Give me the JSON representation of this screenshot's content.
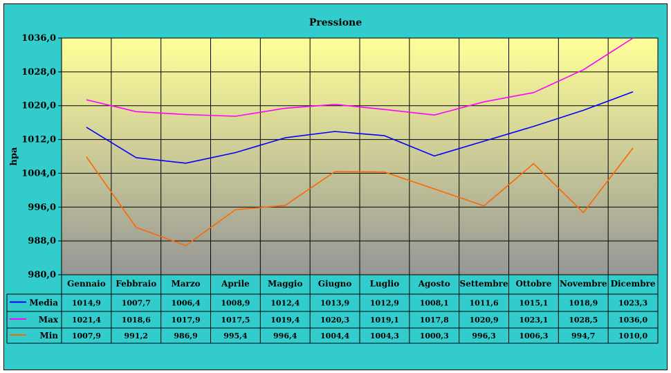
{
  "chart_data": {
    "type": "line",
    "title": "Pressione",
    "ylabel": "hpa",
    "ylim": [
      980,
      1036
    ],
    "yticks": [
      "980,0",
      "988,0",
      "996,0",
      "1004,0",
      "1012,0",
      "1020,0",
      "1028,0",
      "1036,0"
    ],
    "categories": [
      "Gennaio",
      "Febbraio",
      "Marzo",
      "Aprile",
      "Maggio",
      "Giugno",
      "Luglio",
      "Agosto",
      "Settembre",
      "Ottobre",
      "Novembre",
      "Dicembre"
    ],
    "series": [
      {
        "name": "Media",
        "color": "#0000ff",
        "values": [
          1014.9,
          1007.7,
          1006.4,
          1008.9,
          1012.4,
          1013.9,
          1012.9,
          1008.1,
          1011.6,
          1015.1,
          1018.9,
          1023.3
        ],
        "labels": [
          "1014,9",
          "1007,7",
          "1006,4",
          "1008,9",
          "1012,4",
          "1013,9",
          "1012,9",
          "1008,1",
          "1011,6",
          "1015,1",
          "1018,9",
          "1023,3"
        ]
      },
      {
        "name": "Max",
        "color": "#ff00ff",
        "values": [
          1021.4,
          1018.6,
          1017.9,
          1017.5,
          1019.4,
          1020.3,
          1019.1,
          1017.8,
          1020.9,
          1023.1,
          1028.5,
          1036.0
        ],
        "labels": [
          "1021,4",
          "1018,6",
          "1017,9",
          "1017,5",
          "1019,4",
          "1020,3",
          "1019,1",
          "1017,8",
          "1020,9",
          "1023,1",
          "1028,5",
          "1036,0"
        ]
      },
      {
        "name": "Min",
        "color": "#ff6600",
        "values": [
          1007.9,
          991.2,
          986.9,
          995.4,
          996.4,
          1004.4,
          1004.3,
          1000.3,
          996.3,
          1006.3,
          994.7,
          1010.0
        ],
        "labels": [
          "1007,9",
          "991,2",
          "986,9",
          "995,4",
          "996,4",
          "1004,4",
          "1004,3",
          "1000,3",
          "996,3",
          "1006,3",
          "994,7",
          "1010,0"
        ]
      }
    ],
    "grid": true,
    "legend": "data-table",
    "colors": {
      "frame": "#33cccc",
      "plot_top": "#ffff99",
      "plot_bottom": "#969696"
    }
  }
}
